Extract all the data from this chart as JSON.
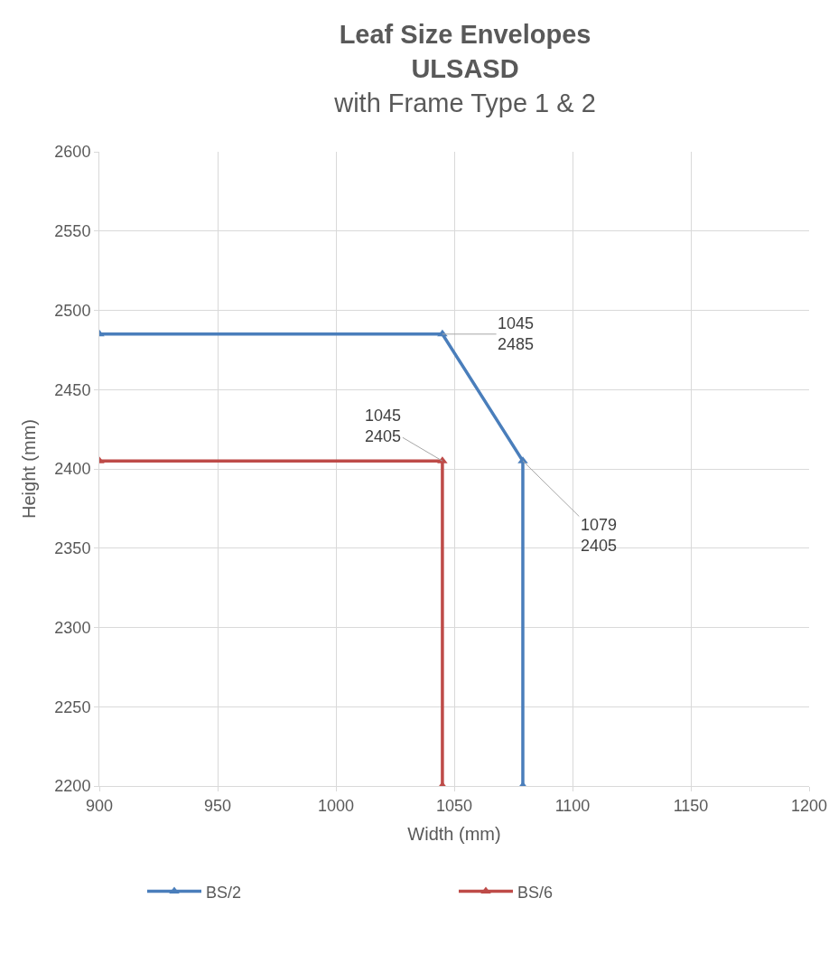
{
  "chart_data": {
    "type": "line",
    "title": "Leaf Size Envelopes\nULSASD",
    "subtitle": "with Frame Type 1 & 2",
    "xlabel": "Width (mm)",
    "ylabel": "Height (mm)",
    "series": [
      {
        "name": "BS/2",
        "color": "#4a7ebb",
        "x": [
          900,
          1045,
          1079,
          1079
        ],
        "values": [
          2485,
          2485,
          2405,
          2200
        ],
        "value_labels": [
          null,
          "1045\n2485",
          "1079\n2405",
          null
        ]
      },
      {
        "name": "BS/6",
        "color": "#be4b48",
        "x": [
          900,
          1045,
          1045
        ],
        "values": [
          2405,
          2405,
          2200
        ],
        "value_labels": [
          null,
          "1045\n2405",
          null
        ]
      }
    ],
    "xlim": [
      900,
      1200
    ],
    "xticks": [
      900,
      950,
      1000,
      1050,
      1100,
      1150,
      1200
    ],
    "ylim": [
      2200,
      2600
    ],
    "yticks": [
      2200,
      2250,
      2300,
      2350,
      2400,
      2450,
      2500,
      2550,
      2600
    ],
    "grid": true,
    "legend": "bottom",
    "marker": "triangle",
    "line_style": "solid"
  }
}
